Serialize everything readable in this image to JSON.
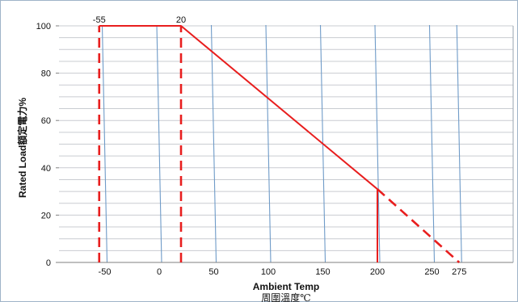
{
  "chart_data": {
    "type": "line",
    "xlabel": "Ambient Temp",
    "xlabel_sub": "周圍溫度℃",
    "ylabel": "Rated Load額定電力%",
    "yticks": [
      "0",
      "20",
      "40",
      "60",
      "80",
      "100"
    ],
    "xticks": [
      "-50",
      "0",
      "50",
      "100",
      "150",
      "200",
      "250",
      "275"
    ],
    "xlim": [
      -95,
      325
    ],
    "ylim": [
      0,
      100
    ],
    "grid": true,
    "series": [
      {
        "style": "solid",
        "color": "#e81e1e",
        "x": [
          -55,
          20,
          200
        ],
        "y": [
          100,
          100,
          31
        ]
      },
      {
        "style": "dashed",
        "color": "#e81e1e",
        "x": [
          200,
          275
        ],
        "y": [
          31,
          0
        ]
      },
      {
        "style": "solid",
        "color": "#e81e1e",
        "x": [
          200,
          200
        ],
        "y": [
          0,
          31
        ]
      },
      {
        "style": "dashed",
        "color": "#e81e1e",
        "x": [
          -55,
          -55
        ],
        "y": [
          0,
          100
        ]
      },
      {
        "style": "dashed",
        "color": "#e81e1e",
        "x": [
          20,
          20
        ],
        "y": [
          0,
          100
        ]
      }
    ],
    "annotations": [
      {
        "text": "-55",
        "x": -55,
        "y": 100
      },
      {
        "text": "20",
        "x": 20,
        "y": 100
      }
    ],
    "colors": {
      "curve": "#e81e1e",
      "vgrid": "#6f9bc8",
      "hgrid": "#c9ccd1"
    }
  }
}
